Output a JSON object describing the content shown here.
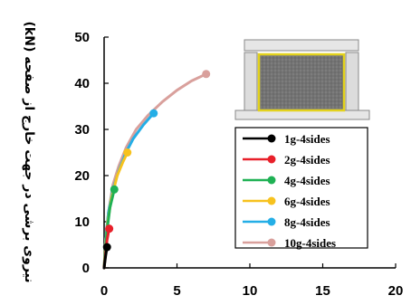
{
  "chart_data": {
    "type": "line",
    "title": "",
    "xlabel": "",
    "ylabel": "نیروی برشی در جهت خارج از صفحه (kN)",
    "xlim": [
      0,
      20
    ],
    "ylim": [
      0,
      50
    ],
    "xticks": [
      0,
      5,
      10,
      15,
      20
    ],
    "yticks": [
      0,
      10,
      20,
      30,
      40,
      50
    ],
    "grid": false,
    "legend_position": "right",
    "series": [
      {
        "name": "1g-4sides",
        "color": "#000000",
        "x": [
          0,
          0.1,
          0.2
        ],
        "y": [
          0,
          2.5,
          4.5
        ]
      },
      {
        "name": "2g-4sides",
        "color": "#e8202a",
        "x": [
          0,
          0.1,
          0.2,
          0.35
        ],
        "y": [
          0,
          3,
          6,
          8.5
        ]
      },
      {
        "name": "4g-4sides",
        "color": "#1fb154",
        "x": [
          0,
          0.1,
          0.2,
          0.4,
          0.7
        ],
        "y": [
          0,
          4,
          8,
          13,
          17
        ]
      },
      {
        "name": "6g-4sides",
        "color": "#f7c21e",
        "x": [
          0,
          0.1,
          0.25,
          0.5,
          0.9,
          1.3,
          1.6
        ],
        "y": [
          0,
          5,
          10,
          15,
          20,
          23,
          25
        ]
      },
      {
        "name": "8g-4sides",
        "color": "#24aee6",
        "x": [
          0,
          0.1,
          0.3,
          0.6,
          1.0,
          1.5,
          2.0,
          2.7,
          3.4
        ],
        "y": [
          0,
          6,
          12,
          17,
          21,
          25,
          28,
          31,
          33.5
        ]
      },
      {
        "name": "10g-4sides",
        "color": "#d9a09c",
        "x": [
          0,
          0.1,
          0.3,
          0.6,
          1.0,
          1.5,
          2.2,
          3.0,
          4.0,
          5.0,
          6.0,
          7.0
        ],
        "y": [
          0,
          6,
          12,
          18,
          22,
          26,
          30,
          33,
          36,
          38.5,
          40.5,
          42
        ]
      }
    ]
  }
}
